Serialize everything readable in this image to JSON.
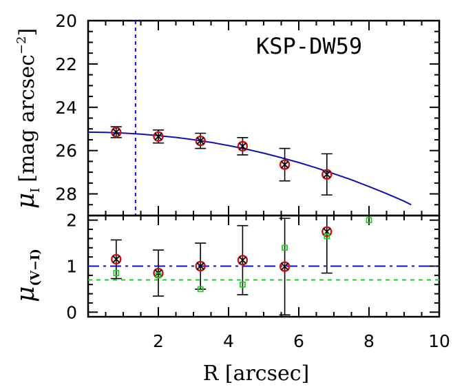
{
  "chart_data": [
    {
      "type": "scatter",
      "panel": "top",
      "annotation": "KSP-DW59",
      "ylabel_main": "[mag arcsec",
      "ylabel_sup": "−2",
      "ylabel_close": "]",
      "ylabel_symbol": "μ",
      "ylabel_sub": "I",
      "xlim": [
        0,
        10
      ],
      "ylim": [
        29,
        20
      ],
      "yticks": [
        20,
        22,
        24,
        26,
        28
      ],
      "y_tick_labels": [
        "20",
        "22",
        "24",
        "26",
        "28"
      ],
      "vline_x": 1.35,
      "series": [
        {
          "marker": "red-open-circle-with-cross",
          "x": [
            0.8,
            2.0,
            3.2,
            4.4,
            5.6,
            6.8
          ],
          "y": [
            25.15,
            25.35,
            25.55,
            25.8,
            26.65,
            27.1
          ],
          "yerr": [
            0.25,
            0.3,
            0.35,
            0.4,
            0.75,
            0.95
          ]
        }
      ],
      "model_curve": {
        "x": [
          0,
          0.5,
          1,
          1.5,
          2,
          2.5,
          3,
          3.5,
          4,
          4.5,
          5,
          5.5,
          6,
          6.5,
          7,
          7.5,
          8,
          8.5,
          9,
          9.2
        ],
        "y": [
          25.15,
          25.16,
          25.19,
          25.24,
          25.31,
          25.39,
          25.5,
          25.62,
          25.77,
          25.93,
          26.12,
          26.33,
          26.55,
          26.8,
          27.07,
          27.35,
          27.66,
          27.99,
          28.34,
          28.5
        ]
      }
    },
    {
      "type": "scatter",
      "panel": "bottom",
      "ylabel_symbol": "μ",
      "ylabel_sub": "(V−I)",
      "xlabel": "R [arcsec]",
      "xlim": [
        0,
        10
      ],
      "ylim": [
        -0.1,
        2.1
      ],
      "xticks": [
        2,
        4,
        6,
        8,
        10
      ],
      "x_tick_labels": [
        "2",
        "4",
        "6",
        "8",
        "10"
      ],
      "yticks": [
        0,
        1,
        2
      ],
      "y_tick_labels": [
        "0",
        "1",
        "2"
      ],
      "hline_blue": 1.0,
      "hline_green": 0.7,
      "series": [
        {
          "marker": "red-open-circle-with-cross",
          "x": [
            0.8,
            2.0,
            3.2,
            4.4,
            5.6,
            6.8
          ],
          "y": [
            1.15,
            0.85,
            1.0,
            1.13,
            0.99,
            1.75
          ],
          "yerr": [
            0.42,
            0.5,
            0.5,
            0.75,
            1.05,
            0.9
          ]
        },
        {
          "marker": "green-open-square",
          "x": [
            0.8,
            2.0,
            3.2,
            4.4,
            5.6,
            6.8,
            8.0
          ],
          "y": [
            0.85,
            0.8,
            0.5,
            0.6,
            1.4,
            1.65,
            2.05
          ]
        }
      ]
    }
  ]
}
